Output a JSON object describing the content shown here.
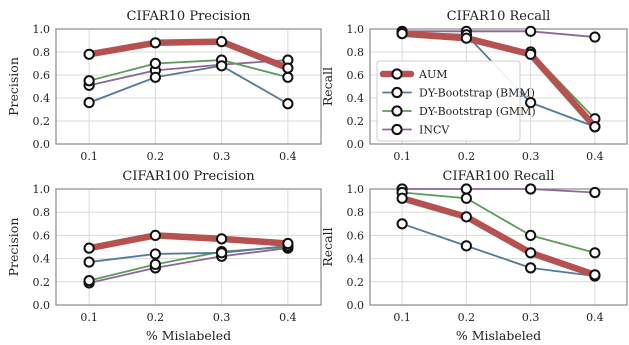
{
  "chart_data": [
    {
      "type": "line",
      "title": "CIFAR10 Precision",
      "xlabel": "",
      "ylabel": "Precision",
      "x": [
        0.1,
        0.2,
        0.3,
        0.4
      ],
      "xticks": [
        "0.1",
        "0.2",
        "0.3",
        "0.4"
      ],
      "ylim": [
        0,
        1
      ],
      "yticks": [
        "0.0",
        "0.2",
        "0.4",
        "0.6",
        "0.8",
        "1.0"
      ],
      "grid": true,
      "series": [
        {
          "name": "INCV",
          "values": [
            0.51,
            0.64,
            0.69,
            0.73
          ]
        },
        {
          "name": "DY-Bootstrap (GMM)",
          "values": [
            0.55,
            0.7,
            0.73,
            0.58
          ]
        },
        {
          "name": "DY-Bootstrap (BMM)",
          "values": [
            0.36,
            0.58,
            0.68,
            0.35
          ]
        },
        {
          "name": "AUM",
          "values": [
            0.78,
            0.88,
            0.89,
            0.66
          ]
        }
      ]
    },
    {
      "type": "line",
      "title": "CIFAR10 Recall",
      "xlabel": "",
      "ylabel": "Recall",
      "x": [
        0.1,
        0.2,
        0.3,
        0.4
      ],
      "xticks": [
        "0.1",
        "0.2",
        "0.3",
        "0.4"
      ],
      "ylim": [
        0,
        1
      ],
      "yticks": [
        "0.0",
        "0.2",
        "0.4",
        "0.6",
        "0.8",
        "1.0"
      ],
      "grid": true,
      "legend": "center-left",
      "series": [
        {
          "name": "INCV",
          "values": [
            0.98,
            0.98,
            0.98,
            0.93
          ]
        },
        {
          "name": "DY-Bootstrap (GMM)",
          "values": [
            0.96,
            0.94,
            0.8,
            0.22
          ]
        },
        {
          "name": "DY-Bootstrap (BMM)",
          "values": [
            0.97,
            0.95,
            0.36,
            0.15
          ]
        },
        {
          "name": "AUM",
          "values": [
            0.96,
            0.92,
            0.78,
            0.15
          ]
        }
      ]
    },
    {
      "type": "line",
      "title": "CIFAR100 Precision",
      "xlabel": "% Mislabeled",
      "ylabel": "Precision",
      "x": [
        0.1,
        0.2,
        0.3,
        0.4
      ],
      "xticks": [
        "0.1",
        "0.2",
        "0.3",
        "0.4"
      ],
      "ylim": [
        0,
        1
      ],
      "yticks": [
        "0.0",
        "0.2",
        "0.4",
        "0.6",
        "0.8",
        "1.0"
      ],
      "grid": true,
      "series": [
        {
          "name": "INCV",
          "values": [
            0.19,
            0.32,
            0.42,
            0.49
          ]
        },
        {
          "name": "DY-Bootstrap (GMM)",
          "values": [
            0.21,
            0.35,
            0.46,
            0.5
          ]
        },
        {
          "name": "DY-Bootstrap (BMM)",
          "values": [
            0.37,
            0.44,
            0.45,
            0.51
          ]
        },
        {
          "name": "AUM",
          "values": [
            0.49,
            0.6,
            0.57,
            0.53
          ]
        }
      ]
    },
    {
      "type": "line",
      "title": "CIFAR100 Recall",
      "xlabel": "% Mislabeled",
      "ylabel": "Recall",
      "x": [
        0.1,
        0.2,
        0.3,
        0.4
      ],
      "xticks": [
        "0.1",
        "0.2",
        "0.3",
        "0.4"
      ],
      "ylim": [
        0,
        1
      ],
      "yticks": [
        "0.0",
        "0.2",
        "0.4",
        "0.6",
        "0.8",
        "1.0"
      ],
      "grid": true,
      "series": [
        {
          "name": "INCV",
          "values": [
            1.0,
            1.0,
            1.0,
            0.97
          ]
        },
        {
          "name": "DY-Bootstrap (GMM)",
          "values": [
            0.97,
            0.92,
            0.6,
            0.45
          ]
        },
        {
          "name": "DY-Bootstrap (BMM)",
          "values": [
            0.7,
            0.51,
            0.32,
            0.25
          ]
        },
        {
          "name": "AUM",
          "values": [
            0.92,
            0.76,
            0.45,
            0.26
          ]
        }
      ]
    }
  ],
  "legend": {
    "entries": [
      {
        "name": "AUM",
        "color": "#b5524f"
      },
      {
        "name": "DY-Bootstrap (BMM)",
        "color": "#56789a"
      },
      {
        "name": "DY-Bootstrap (GMM)",
        "color": "#5e9a58"
      },
      {
        "name": "INCV",
        "color": "#8e6698"
      }
    ]
  },
  "colors": {
    "AUM": "#b5524f",
    "DY-Bootstrap (BMM)": "#56789a",
    "DY-Bootstrap (GMM)": "#5e9a58",
    "INCV": "#8e6698",
    "grid": "#d8d8d8",
    "frame": "#8a8a8a",
    "marker_edge": "#111111"
  }
}
